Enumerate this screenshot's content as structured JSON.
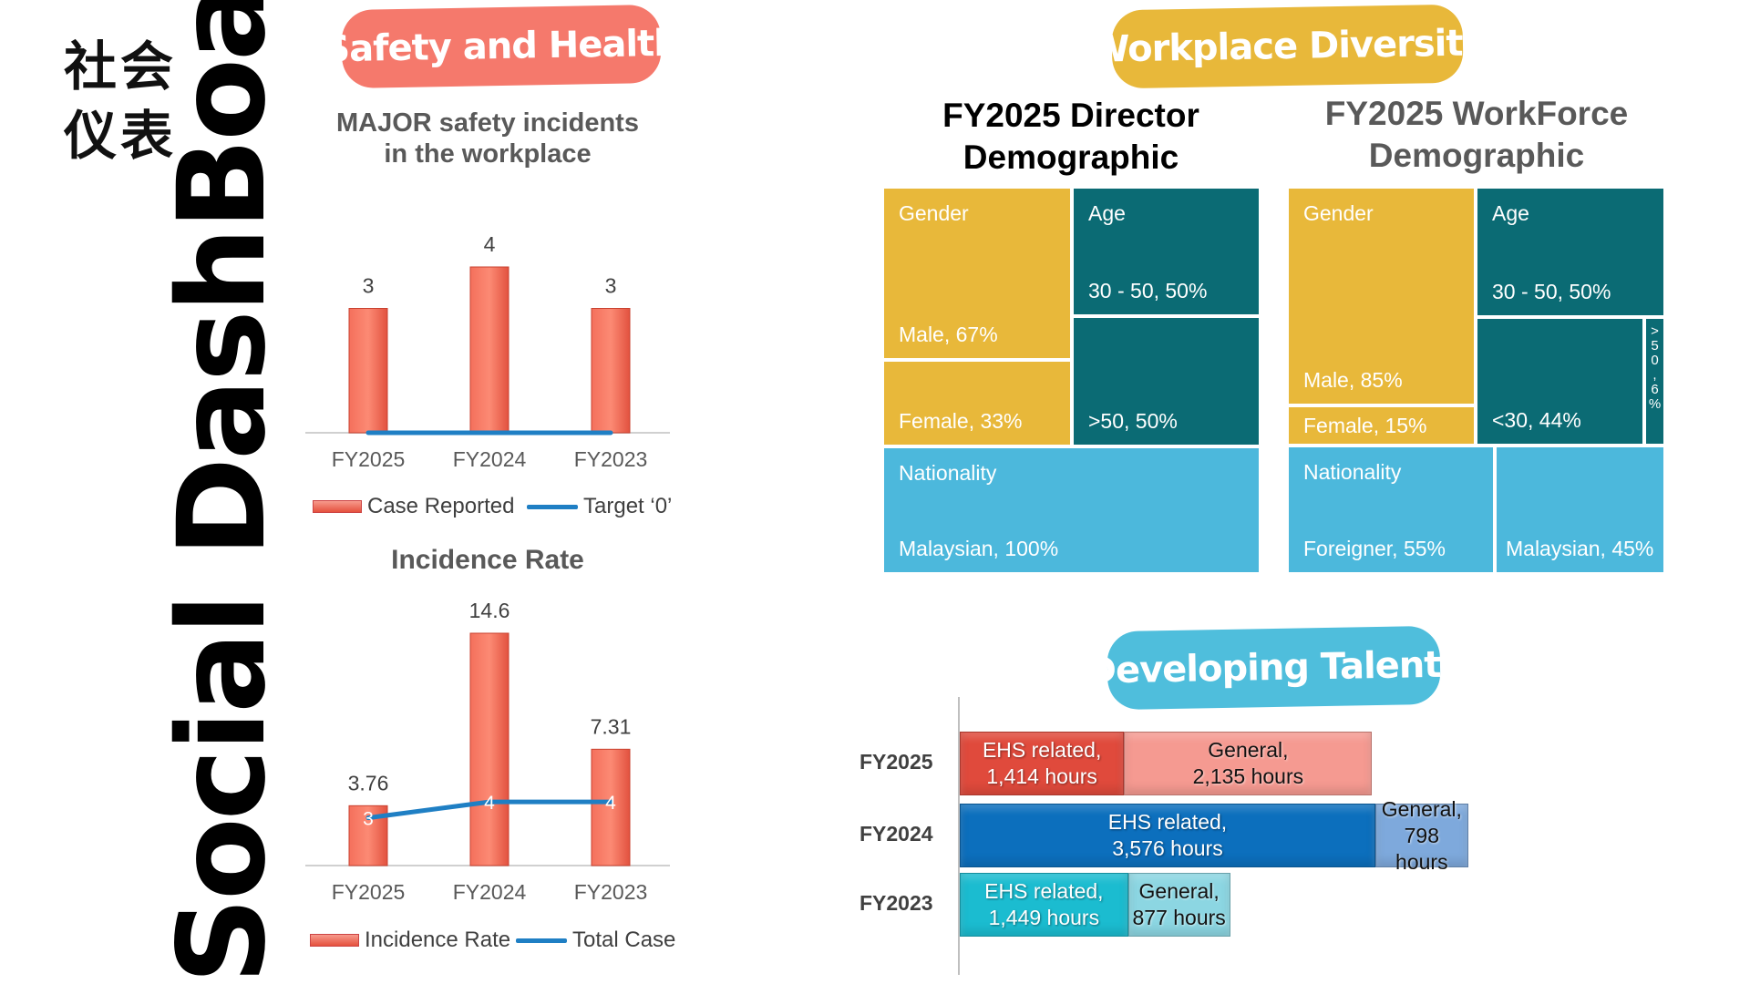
{
  "page": {
    "vertical_title": "Social DashBoard",
    "chinese_title_line1": "社会",
    "chinese_title_line2": "仪表"
  },
  "sections": {
    "safety": "Safety and Health",
    "diversity": "Workplace Diversity",
    "talents": "Developing Talents"
  },
  "chart_data": [
    {
      "type": "bar",
      "title": "MAJOR safety incidents\nin the workplace",
      "categories": [
        "FY2025",
        "FY2024",
        "FY2023"
      ],
      "series": [
        {
          "name": "Case Reported",
          "kind": "bar",
          "values": [
            3,
            4,
            3
          ],
          "color": "#f26a57"
        },
        {
          "name": "Target ‘0’",
          "kind": "line",
          "values": [
            0,
            0,
            0
          ],
          "color": "#1f7fc4"
        }
      ],
      "ylim": [
        0,
        4.5
      ],
      "legend": "bottom",
      "grid": false
    },
    {
      "type": "bar",
      "title": "Incidence Rate",
      "categories": [
        "FY2025",
        "FY2024",
        "FY2023"
      ],
      "series": [
        {
          "name": "Incidence Rate",
          "kind": "bar",
          "values": [
            3.76,
            14.6,
            7.31
          ],
          "color": "#f26a57"
        },
        {
          "name": "Total Case",
          "kind": "line",
          "values": [
            3,
            4,
            4
          ],
          "color": "#1f7fc4"
        }
      ],
      "ylim": [
        0,
        16
      ],
      "legend": "bottom",
      "grid": false
    },
    {
      "type": "treemap",
      "title": "FY2025 Director Demographic",
      "groups": [
        {
          "name": "Gender",
          "color": "#e8b83a",
          "items": [
            {
              "label": "Male, 67%",
              "value": 67
            },
            {
              "label": "Female, 33%",
              "value": 33
            }
          ]
        },
        {
          "name": "Age",
          "color": "#0b6b74",
          "items": [
            {
              "label": "30 - 50, 50%",
              "value": 50
            },
            {
              "label": ">50, 50%",
              "value": 50
            }
          ]
        },
        {
          "name": "Nationality",
          "color": "#4cb8dc",
          "items": [
            {
              "label": "Malaysian, 100%",
              "value": 100
            }
          ]
        }
      ]
    },
    {
      "type": "treemap",
      "title": "FY2025 WorkForce Demographic",
      "groups": [
        {
          "name": "Gender",
          "color": "#e8b83a",
          "items": [
            {
              "label": "Male, 85%",
              "value": 85
            },
            {
              "label": "Female, 15%",
              "value": 15
            }
          ]
        },
        {
          "name": "Age",
          "color": "#0b6b74",
          "items": [
            {
              "label": "30 - 50, 50%",
              "value": 50
            },
            {
              "label": "<30, 44%",
              "value": 44
            },
            {
              "label": ">50, 6%",
              "value": 6
            }
          ]
        },
        {
          "name": "Nationality",
          "color": "#4cb8dc",
          "items": [
            {
              "label": "Foreigner, 55%",
              "value": 55
            },
            {
              "label": "Malaysian, 45%",
              "value": 45
            }
          ]
        }
      ]
    },
    {
      "type": "bar",
      "orientation": "horizontal",
      "stacked": true,
      "categories": [
        "FY2025",
        "FY2024",
        "FY2023"
      ],
      "rows": [
        {
          "label": "FY2025",
          "segments": [
            {
              "category": "EHS related,",
              "value": 1414,
              "value_text": "1,414 hours",
              "color": "#e04a3c"
            },
            {
              "category": "General,",
              "value": 2135,
              "value_text": "2,135 hours",
              "color": "#f59a91"
            }
          ]
        },
        {
          "label": "FY2024",
          "segments": [
            {
              "category": "EHS related,",
              "value": 3576,
              "value_text": "3,576 hours",
              "color": "#0c6fbd"
            },
            {
              "category": "General,",
              "value": 798,
              "value_text": "798 hours",
              "color": "#7ea9dc"
            }
          ]
        },
        {
          "label": "FY2023",
          "segments": [
            {
              "category": "EHS related,",
              "value": 1449,
              "value_text": "1,449 hours",
              "color": "#1bbcd0"
            },
            {
              "category": "General,",
              "value": 877,
              "value_text": "877 hours",
              "color": "#8cd6e2"
            }
          ]
        }
      ]
    }
  ]
}
